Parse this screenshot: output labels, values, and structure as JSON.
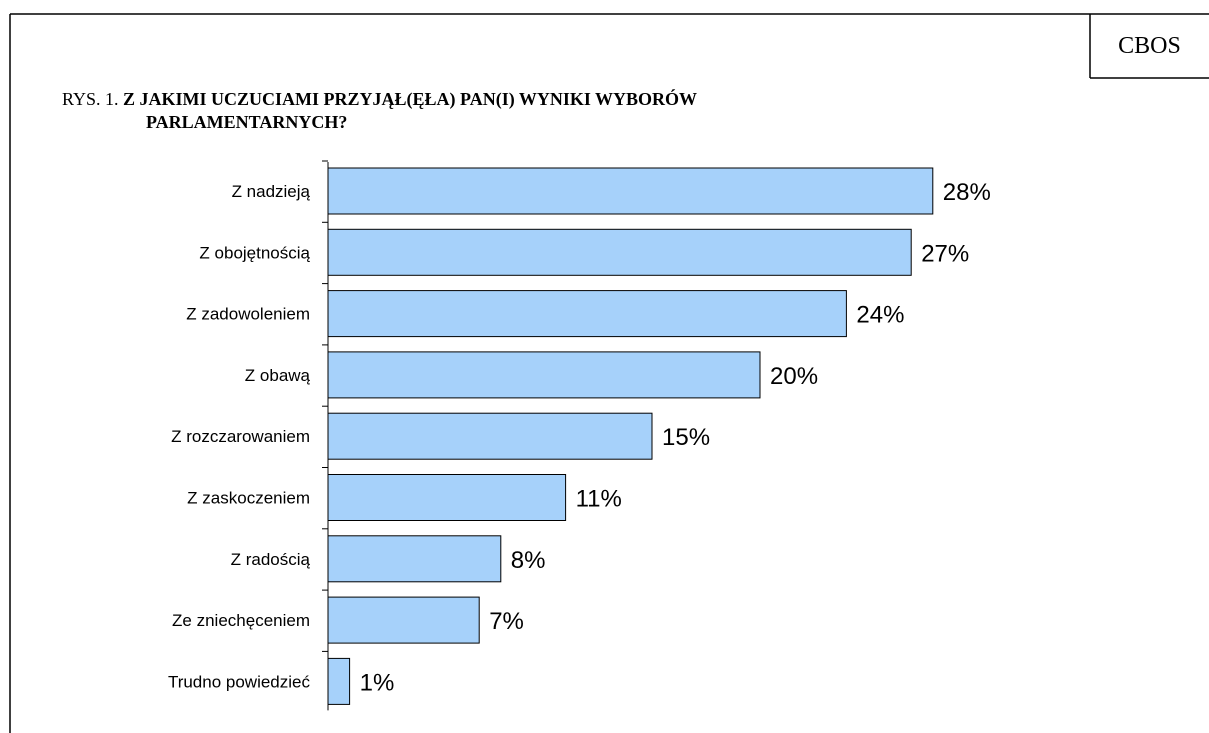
{
  "brand": "CBOS",
  "figure": {
    "prefix": "RYS. 1.",
    "title_line1": "Z JAKIMI UCZUCIAMI PRZYJĄŁ(ĘŁA) PAN(I) WYNIKI WYBORÓW",
    "title_line2": "PARLAMENTARNYCH?"
  },
  "colors": {
    "bar_fill": "#a6d1fa",
    "bar_stroke": "#000000"
  },
  "chart_data": {
    "type": "bar",
    "orientation": "horizontal",
    "title": "Z JAKIMI UCZUCIAMI PRZYJĄŁ(ĘŁA) PAN(I) WYNIKI WYBORÓW PARLAMENTARNYCH?",
    "categories": [
      "Z nadzieją",
      "Z obojętnością",
      "Z zadowoleniem",
      "Z obawą",
      "Z rozczarowaniem",
      "Z zaskoczeniem",
      "Z radością",
      "Ze zniechęceniem",
      "Trudno powiedzieć"
    ],
    "values": [
      28,
      27,
      24,
      20,
      15,
      11,
      8,
      7,
      1
    ],
    "value_labels": [
      "28%",
      "27%",
      "24%",
      "20%",
      "15%",
      "11%",
      "8%",
      "7%",
      "1%"
    ],
    "xlim": [
      0,
      30
    ],
    "grid": false,
    "legend": false
  }
}
